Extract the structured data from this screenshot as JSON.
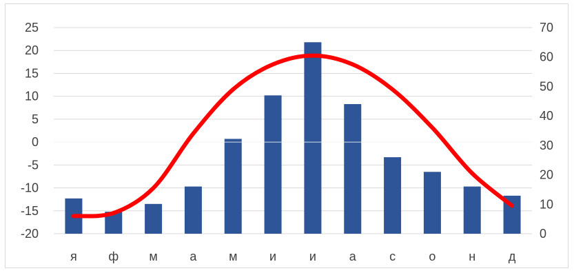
{
  "chart_data": {
    "type": "bar",
    "categories": [
      "я",
      "ф",
      "м",
      "а",
      "м",
      "и",
      "и",
      "а",
      "с",
      "о",
      "н",
      "д"
    ],
    "series": [
      {
        "type": "bar",
        "axis": "left",
        "color": "#2e5597",
        "values": [
          -12.3,
          -15.2,
          -13.5,
          -9.7,
          0.7,
          10.2,
          21.8,
          8.3,
          -3.3,
          -6.5,
          -9.7,
          -11.7
        ]
      },
      {
        "type": "line",
        "axis": "right",
        "color": "#ff0000",
        "values": [
          6,
          7,
          15.5,
          34,
          49,
          57.5,
          60.5,
          57.5,
          49,
          36,
          20.5,
          9.5
        ]
      }
    ],
    "y_left": {
      "min": -20,
      "max": 25,
      "ticks": [
        25,
        20,
        15,
        10,
        5,
        0,
        -5,
        -10,
        -15,
        -20
      ]
    },
    "y_right": {
      "min": 0,
      "max": 70,
      "ticks": [
        70,
        60,
        50,
        40,
        30,
        20,
        10,
        0
      ]
    },
    "grid": true,
    "legend": "none",
    "title": "",
    "xlabel": "",
    "ylabel": ""
  }
}
